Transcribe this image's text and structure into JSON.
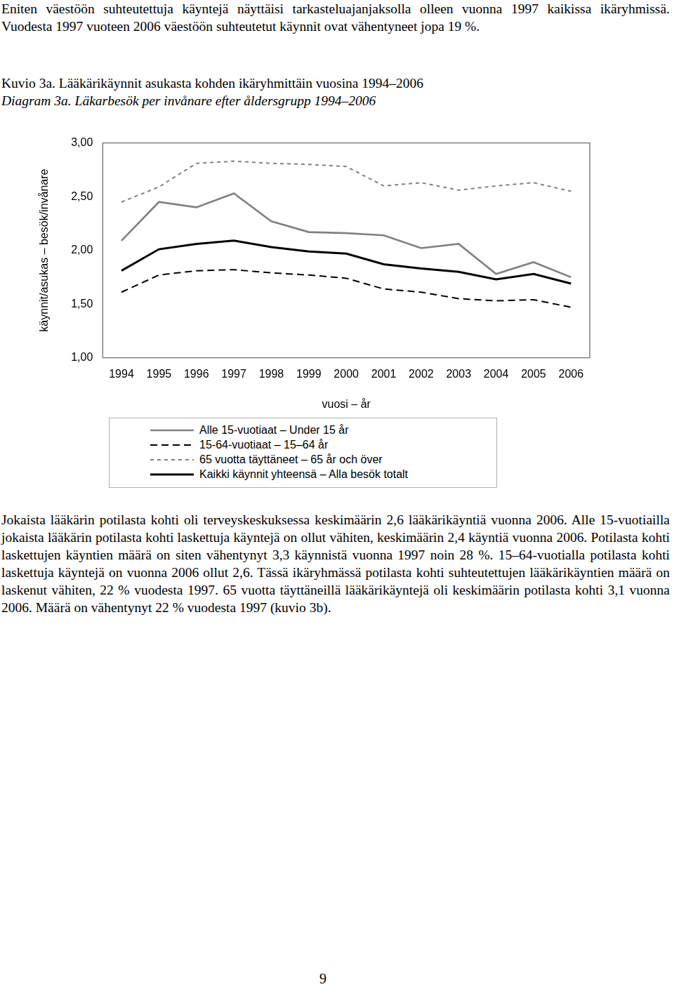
{
  "text_top": "Eniten väestöön suhteutettuja käyntejä näyttäisi tarkasteluajanjaksolla olleen vuonna 1997 kaikissa ikäryhmissä. Vuodesta 1997 vuoteen 2006 väestöön suhteutetut käynnit ovat vähentyneet jopa 19 %.",
  "caption": "Kuvio 3a. Lääkärikäynnit asukasta kohden ikäryhmittäin vuosina 1994–2006",
  "caption_sv": "Diagram 3a. Läkarbesök per invånare efter åldersgrupp 1994–2006",
  "chart_data": {
    "type": "line",
    "x_label": "vuosi – år",
    "y_label": "käynnit/asukas – besök/invånare",
    "categories": [
      "1994",
      "1995",
      "1996",
      "1997",
      "1998",
      "1999",
      "2000",
      "2001",
      "2002",
      "2003",
      "2004",
      "2005",
      "2006"
    ],
    "series": [
      {
        "name": "Alle 15-vuotiaat – Under 15 år",
        "color": "#808080",
        "line_style": "solid",
        "values": [
          2.09,
          2.45,
          2.4,
          2.53,
          2.27,
          2.17,
          2.16,
          2.14,
          2.02,
          2.06,
          1.78,
          1.89,
          1.75
        ]
      },
      {
        "name": "15-64-vuotiaat – 15–64 år",
        "color": "#000000",
        "line_style": "dashed",
        "values": [
          1.61,
          1.77,
          1.81,
          1.82,
          1.79,
          1.77,
          1.74,
          1.64,
          1.61,
          1.55,
          1.53,
          1.54,
          1.47
        ]
      },
      {
        "name": "65 vuotta täyttäneet – 65 år och över",
        "color": "#808080",
        "line_style": "dotted",
        "values": [
          2.45,
          2.59,
          2.81,
          2.83,
          2.81,
          2.8,
          2.78,
          2.6,
          2.63,
          2.56,
          2.6,
          2.63,
          2.55
        ]
      },
      {
        "name": "Kaikki käynnit yhteensä – Alla besök totalt",
        "color": "#000000",
        "line_style": "solid",
        "values": [
          1.81,
          2.01,
          2.06,
          2.09,
          2.03,
          1.99,
          1.97,
          1.87,
          1.83,
          1.8,
          1.73,
          1.78,
          1.69
        ]
      }
    ],
    "ylim": [
      1,
      3
    ],
    "yticks": [
      {
        "value": 1,
        "label": "1,00"
      },
      {
        "value": 1.5,
        "label": "1,50"
      },
      {
        "value": 2,
        "label": "2,00"
      },
      {
        "value": 2.5,
        "label": "2,50"
      },
      {
        "value": 3,
        "label": "3,00"
      }
    ],
    "grid": false,
    "legend": "bottom"
  },
  "body_text": "Jokaista lääkärin potilasta kohti oli terveyskeskuksessa keskimäärin 2,6 lääkärikäyntiä vuonna 2006. Alle 15-vuotiailla jokaista lääkärin potilasta kohti laskettuja käyntejä on ollut vähiten, keskimäärin 2,4 käyntiä vuonna 2006. Potilasta kohti laskettujen käyntien määrä on siten vähentynyt 3,3 käynnistä vuonna 1997 noin 28 %. 15–64-vuotialla potilasta kohti laskettuja käyntejä on vuonna 2006 ollut 2,6. Tässä ikäryhmässä potilasta kohti suhteutettujen lääkärikäyntien määrä on laskenut vähiten, 22 % vuodesta 1997. 65 vuotta täyttäneillä lääkärikäyntejä oli keskimäärin potilasta kohti 3,1 vuonna 2006. Määrä on vähentynyt 22 % vuodesta 1997 (kuvio 3b).",
  "page_number": "9"
}
